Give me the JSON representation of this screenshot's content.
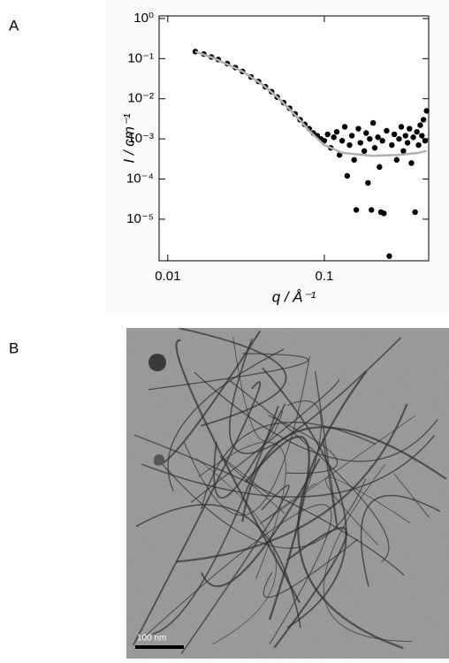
{
  "panel_labels": [
    "A",
    "B"
  ],
  "chart_data": {
    "type": "scatter",
    "xlabel": "q / Å⁻¹",
    "ylabel": "I / cm⁻¹",
    "log_x": true,
    "log_y": true,
    "xlim": [
      0.0088,
      0.464
    ],
    "ylim": [
      9.2e-07,
      1.16
    ],
    "xticks": [
      0.01,
      0.1
    ],
    "yticks": [
      {
        "value": 1,
        "label": "10⁰"
      },
      {
        "value": 0.1,
        "label": "10⁻¹"
      },
      {
        "value": 0.01,
        "label": "10⁻²"
      },
      {
        "value": 0.001,
        "label": "10⁻³"
      },
      {
        "value": 0.0001,
        "label": "10⁻⁴"
      },
      {
        "value": 1e-05,
        "label": "10⁻⁵"
      }
    ],
    "series": [
      {
        "color": "#000000",
        "marker": "dot",
        "x": [
          0.015,
          0.017,
          0.019,
          0.021,
          0.024,
          0.027,
          0.03,
          0.034,
          0.038,
          0.042,
          0.046,
          0.05,
          0.055,
          0.06,
          0.065,
          0.07,
          0.075,
          0.08,
          0.085,
          0.09,
          0.095,
          0.1,
          0.105,
          0.11,
          0.115,
          0.12,
          0.125,
          0.13,
          0.135,
          0.14,
          0.145,
          0.15,
          0.155,
          0.16,
          0.165,
          0.17,
          0.18,
          0.185,
          0.19,
          0.195,
          0.2,
          0.205,
          0.21,
          0.22,
          0.225,
          0.23,
          0.235,
          0.24,
          0.25,
          0.26,
          0.27,
          0.28,
          0.29,
          0.3,
          0.31,
          0.32,
          0.33,
          0.34,
          0.35,
          0.36,
          0.37,
          0.38,
          0.39,
          0.4,
          0.41,
          0.42,
          0.43,
          0.44,
          0.45
        ],
        "values": [
          0.15,
          0.13,
          0.11,
          0.095,
          0.075,
          0.06,
          0.048,
          0.035,
          0.027,
          0.02,
          0.015,
          0.011,
          0.008,
          0.0058,
          0.0042,
          0.003,
          0.0023,
          0.0018,
          0.0014,
          0.0012,
          0.001,
          0.0009,
          0.0013,
          0.0006,
          0.0011,
          0.0015,
          0.0004,
          0.0009,
          0.002,
          0.00012,
          0.0007,
          0.0012,
          0.0003,
          1.7e-05,
          0.0018,
          0.0008,
          0.0005,
          0.0014,
          8e-05,
          0.001,
          1.7e-05,
          0.0025,
          0.0006,
          0.0011,
          0.0002,
          1.5e-05,
          0.0009,
          1.4e-05,
          0.0016,
          1.2e-06,
          0.0007,
          0.0013,
          0.0003,
          0.001,
          0.002,
          0.0005,
          0.0012,
          0.0008,
          0.0018,
          0.00025,
          0.0011,
          1.5e-05,
          0.0015,
          0.0007,
          0.0022,
          0.0012,
          0.003,
          0.0009,
          0.005
        ]
      },
      {
        "color": "#b0b0b0",
        "marker": "line",
        "x": [
          0.015,
          0.02,
          0.03,
          0.04,
          0.05,
          0.06,
          0.07,
          0.08,
          0.1,
          0.13,
          0.2,
          0.3,
          0.4,
          0.45
        ],
        "values": [
          0.15,
          0.1,
          0.048,
          0.023,
          0.011,
          0.0055,
          0.0029,
          0.0016,
          0.0007,
          0.00045,
          0.00038,
          0.0004,
          0.00045,
          0.0005
        ]
      }
    ]
  },
  "image": {
    "scale_bar": "100 nm"
  }
}
